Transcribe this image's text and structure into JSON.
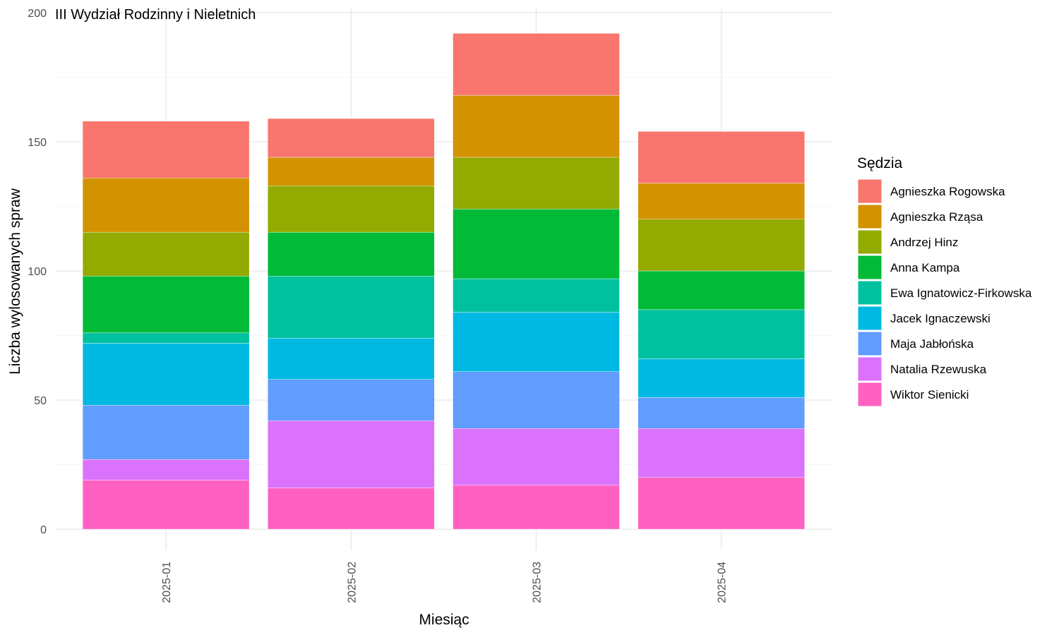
{
  "chart_data": {
    "type": "bar",
    "stacked": true,
    "title": "III Wydział Rodzinny i Nieletnich",
    "xlabel": "Miesiąc",
    "ylabel": "Liczba wylosowanych spraw",
    "ylim": [
      0,
      200
    ],
    "yticks": [
      0,
      50,
      100,
      150,
      200
    ],
    "grid": true,
    "legend_title": "Sędzia",
    "legend_position": "right",
    "categories": [
      "2025-01",
      "2025-02",
      "2025-03",
      "2025-04"
    ],
    "series": [
      {
        "name": "Wiktor Sienicki",
        "color": "#FF61C3",
        "values": [
          19,
          16,
          17,
          20
        ]
      },
      {
        "name": "Natalia Rzewuska",
        "color": "#DB72FB",
        "values": [
          8,
          26,
          22,
          19
        ]
      },
      {
        "name": "Maja Jabłońska",
        "color": "#619CFF",
        "values": [
          21,
          16,
          22,
          12
        ]
      },
      {
        "name": "Jacek Ignaczewski",
        "color": "#00B9E3",
        "values": [
          24,
          16,
          23,
          15
        ]
      },
      {
        "name": "Ewa Ignatowicz-Firkowska",
        "color": "#00C19F",
        "values": [
          4,
          24,
          13,
          19
        ]
      },
      {
        "name": "Anna Kampa",
        "color": "#00BA38",
        "values": [
          22,
          17,
          27,
          15
        ]
      },
      {
        "name": "Andrzej Hinz",
        "color": "#93AA00",
        "values": [
          17,
          18,
          20,
          20
        ]
      },
      {
        "name": "Agnieszka Rząsa",
        "color": "#D39200",
        "values": [
          21,
          11,
          24,
          14
        ]
      },
      {
        "name": "Agnieszka Rogowska",
        "color": "#F8766D",
        "values": [
          22,
          15,
          24,
          20
        ]
      }
    ]
  }
}
